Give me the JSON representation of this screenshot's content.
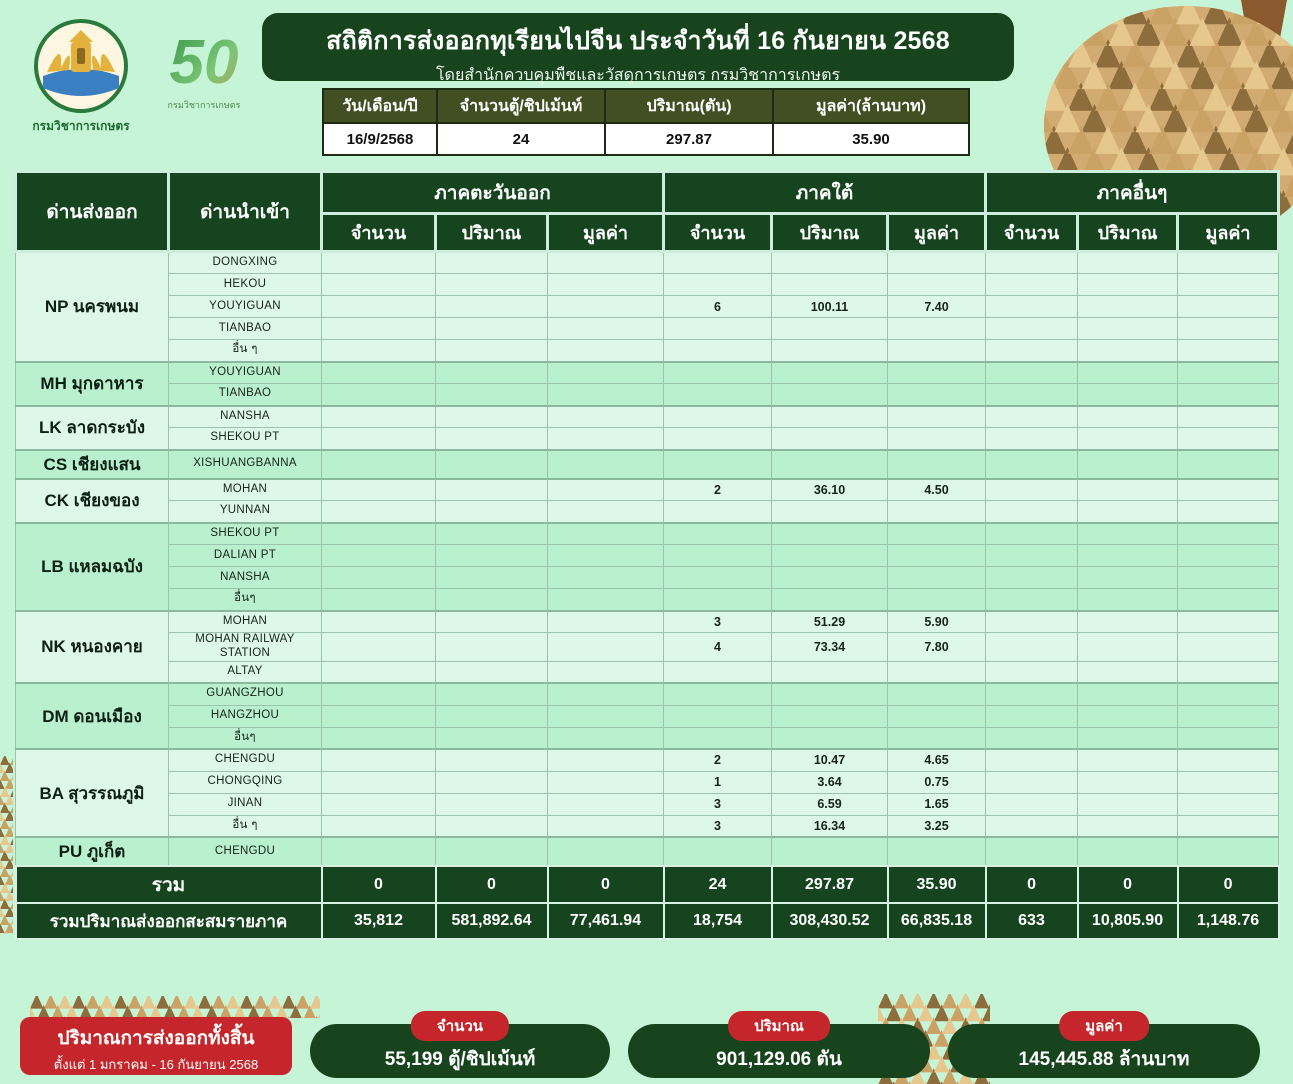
{
  "branding": {
    "department_seal_caption": "กรมวิชาการเกษตร",
    "anniversary_number": "50",
    "anniversary_caption": "กรมวิชาการเกษตร"
  },
  "banner": {
    "title": "สถิติการส่งออกทุเรียนไปจีน ประจำวันที่ 16 กันยายน 2568",
    "subtitle": "โดยสำนักควบคุมพืชและวัสดุการเกษตร กรมวิชาการเกษตร"
  },
  "daily_summary": {
    "headers": [
      "วัน/เดือน/ปี",
      "จำนวนตู้/ชิปเม้นท์",
      "ปริมาณ(ตัน)",
      "มูลค่า(ล้านบาท)"
    ],
    "values": [
      "16/9/2568",
      "24",
      "297.87",
      "35.90"
    ]
  },
  "main_table": {
    "export_col_header": "ด่านส่งออก",
    "import_col_header": "ด่านนำเข้า",
    "region_groups": [
      "ภาคตะวันออก",
      "ภาคใต้",
      "ภาคอื่นๆ"
    ],
    "metric_headers": [
      "จำนวน",
      "ปริมาณ",
      "มูลค่า"
    ],
    "checkpoints": [
      {
        "name": "NP นครพนม",
        "entries": [
          {
            "port": "DONGXING"
          },
          {
            "port": "HEKOU"
          },
          {
            "port": "YOUYIGUAN",
            "south": [
              "6",
              "100.11",
              "7.40"
            ]
          },
          {
            "port": "TIANBAO"
          },
          {
            "port": "อื่น ๆ"
          }
        ]
      },
      {
        "name": "MH มุกดาหาร",
        "entries": [
          {
            "port": "YOUYIGUAN"
          },
          {
            "port": "TIANBAO"
          }
        ]
      },
      {
        "name": "LK ลาดกระบัง",
        "entries": [
          {
            "port": "NANSHA"
          },
          {
            "port": "SHEKOU PT"
          }
        ]
      },
      {
        "name": "CS เชียงแสน",
        "entries": [
          {
            "port": "XISHUANGBANNA"
          }
        ]
      },
      {
        "name": "CK เชียงของ",
        "entries": [
          {
            "port": "MOHAN",
            "south": [
              "2",
              "36.10",
              "4.50"
            ]
          },
          {
            "port": "YUNNAN"
          }
        ]
      },
      {
        "name": "LB แหลมฉบัง",
        "entries": [
          {
            "port": "SHEKOU PT"
          },
          {
            "port": "DALIAN PT"
          },
          {
            "port": "NANSHA"
          },
          {
            "port": "อื่นๆ"
          }
        ]
      },
      {
        "name": "NK หนองคาย",
        "entries": [
          {
            "port": "MOHAN",
            "south": [
              "3",
              "51.29",
              "5.90"
            ]
          },
          {
            "port": "MOHAN RAILWAY STATION",
            "south": [
              "4",
              "73.34",
              "7.80"
            ]
          },
          {
            "port": "ALTAY"
          }
        ]
      },
      {
        "name": "DM ดอนเมือง",
        "entries": [
          {
            "port": "GUANGZHOU"
          },
          {
            "port": "HANGZHOU"
          },
          {
            "port": "อื่นๆ"
          }
        ]
      },
      {
        "name": "BA สุวรรณภูมิ",
        "entries": [
          {
            "port": "CHENGDU",
            "south": [
              "2",
              "10.47",
              "4.65"
            ]
          },
          {
            "port": "CHONGQING",
            "south": [
              "1",
              "3.64",
              "0.75"
            ]
          },
          {
            "port": "JINAN",
            "south": [
              "3",
              "6.59",
              "1.65"
            ]
          },
          {
            "port": "อื่น ๆ",
            "south": [
              "3",
              "16.34",
              "3.25"
            ]
          }
        ]
      },
      {
        "name": "PU ภูเก็ต",
        "entries": [
          {
            "port": "CHENGDU"
          }
        ]
      }
    ],
    "total_row": {
      "label": "รวม",
      "east": [
        "0",
        "0",
        "0"
      ],
      "south": [
        "24",
        "297.87",
        "35.90"
      ],
      "other": [
        "0",
        "0",
        "0"
      ]
    },
    "cumulative_row": {
      "label": "รวมปริมาณส่งออกสะสมรายภาค",
      "east": [
        "35,812",
        "581,892.64",
        "77,461.94"
      ],
      "south": [
        "18,754",
        "308,430.52",
        "66,835.18"
      ],
      "other": [
        "633",
        "10,805.90",
        "1,148.76"
      ]
    }
  },
  "footer": {
    "total_box": {
      "title": "ปริมาณการส่งออกทั้งสิ้น",
      "subtitle": "ตั้งแต่ 1 มกราคม - 16 กันยายน 2568"
    },
    "pills": [
      {
        "badge": "จำนวน",
        "value": "55,199 ตู้/ชิปเม้นท์"
      },
      {
        "badge": "ปริมาณ",
        "value": "901,129.06 ตัน"
      },
      {
        "badge": "มูลค่า",
        "value": "145,445.88 ล้านบาท"
      }
    ]
  },
  "colors": {
    "page_bg": "#c6f4d6",
    "dark_green": "#16441f",
    "olive_header": "#414f22",
    "accent_red": "#c4262b",
    "band_light": "#ddf8e9",
    "band_mint": "#b9f0ce",
    "durian_body": "#d2ab72"
  }
}
